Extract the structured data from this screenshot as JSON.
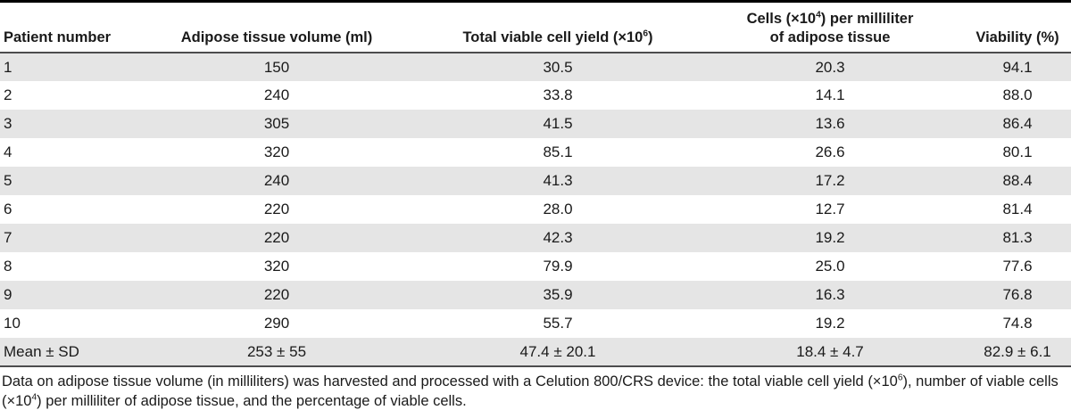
{
  "table": {
    "columns": [
      {
        "id": "patient-number",
        "label_segments": [
          {
            "t": "Patient number"
          }
        ]
      },
      {
        "id": "adipose-volume",
        "label_segments": [
          {
            "t": "Adipose tissue volume (ml)"
          }
        ]
      },
      {
        "id": "cell-yield",
        "label_segments": [
          {
            "t": "Total viable cell yield (×10"
          },
          {
            "sup": "6"
          },
          {
            "t": ")"
          }
        ]
      },
      {
        "id": "cells-per-ml",
        "label_segments": [
          {
            "t": "Cells (×10"
          },
          {
            "sup": "4"
          },
          {
            "t": ") per milliliter"
          },
          {
            "br": true
          },
          {
            "t": "of adipose tissue"
          }
        ]
      },
      {
        "id": "viability",
        "label_segments": [
          {
            "t": "Viability (%)"
          }
        ]
      }
    ],
    "rows": [
      [
        "1",
        "150",
        "30.5",
        "20.3",
        "94.1"
      ],
      [
        "2",
        "240",
        "33.8",
        "14.1",
        "88.0"
      ],
      [
        "3",
        "305",
        "41.5",
        "13.6",
        "86.4"
      ],
      [
        "4",
        "320",
        "85.1",
        "26.6",
        "80.1"
      ],
      [
        "5",
        "240",
        "41.3",
        "17.2",
        "88.4"
      ],
      [
        "6",
        "220",
        "28.0",
        "12.7",
        "81.4"
      ],
      [
        "7",
        "220",
        "42.3",
        "19.2",
        "81.3"
      ],
      [
        "8",
        "320",
        "79.9",
        "25.0",
        "77.6"
      ],
      [
        "9",
        "220",
        "35.9",
        "16.3",
        "76.8"
      ],
      [
        "10",
        "290",
        "55.7",
        "19.2",
        "74.8"
      ],
      [
        "Mean ± SD",
        "253 ± 55",
        "47.4 ± 20.1",
        "18.4 ± 4.7",
        "82.9 ± 6.1"
      ]
    ]
  },
  "footnote_segments": [
    {
      "t": "Data on adipose tissue volume (in milliliters) was harvested and processed with a Celution 800/CRS device: the total viable cell yield (×10"
    },
    {
      "sup": "6"
    },
    {
      "t": "), number of viable cells (×10"
    },
    {
      "sup": "4"
    },
    {
      "t": ") per milliliter of adipose tissue, and the percentage of viable cells."
    }
  ],
  "colors": {
    "stripe": "#e5e5e5",
    "rule": "#4c4c4e",
    "top_border": "#000000",
    "text": "#1a1a1a"
  }
}
